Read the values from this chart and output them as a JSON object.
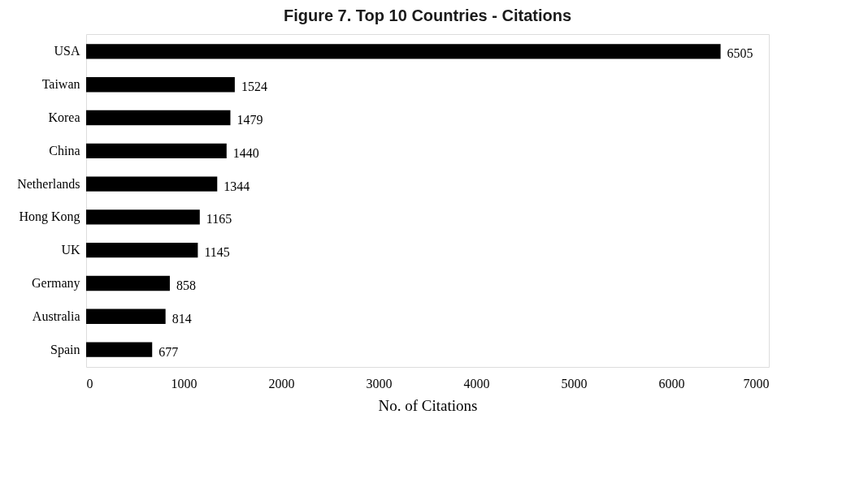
{
  "chart_data": {
    "type": "bar",
    "orientation": "horizontal",
    "title": "Figure 7. Top 10 Countries - Citations",
    "xlabel": "No. of Citations",
    "categories": [
      "USA",
      "Taiwan",
      "Korea",
      "China",
      "Netherlands",
      "Hong Kong",
      "UK",
      "Germany",
      "Australia",
      "Spain"
    ],
    "values": [
      6505,
      1524,
      1479,
      1440,
      1344,
      1165,
      1145,
      858,
      814,
      677
    ],
    "color": "#000000",
    "xlim": [
      0,
      7000
    ],
    "xticks": [
      0,
      1000,
      2000,
      3000,
      4000,
      5000,
      6000,
      7000
    ],
    "data_labels": true,
    "grid": false
  }
}
